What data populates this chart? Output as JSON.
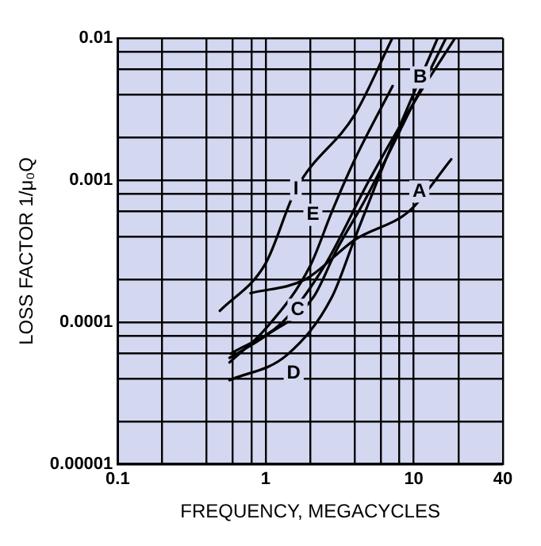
{
  "chart_data": {
    "type": "line",
    "xlabel": "FREQUENCY, MEGACYCLES",
    "ylabel": "LOSS FACTOR 1/μ₀Q",
    "log": "xy",
    "grid": true,
    "legend": false,
    "marker": "none",
    "line_style": "solid",
    "xlim": [
      0.1,
      40
    ],
    "xticks": [
      0.1,
      {
        "value": 0.2,
        "label": null
      },
      {
        "value": 0.4,
        "label": null
      },
      {
        "value": 0.6,
        "label": null
      },
      {
        "value": 0.8,
        "label": null
      },
      1,
      {
        "value": 2,
        "label": null
      },
      {
        "value": 4,
        "label": null
      },
      {
        "value": 6,
        "label": null
      },
      {
        "value": 8,
        "label": null
      },
      10,
      {
        "value": 20,
        "label": null
      },
      40
    ],
    "ylim": [
      1e-05,
      0.01
    ],
    "yticks": [
      {
        "value": 1e-05,
        "label": "0.00001"
      },
      {
        "value": 2e-05,
        "label": null
      },
      {
        "value": 4e-05,
        "label": null
      },
      {
        "value": 6e-05,
        "label": null
      },
      {
        "value": 8e-05,
        "label": null
      },
      0.0001,
      {
        "value": 0.0002,
        "label": null
      },
      {
        "value": 0.0004,
        "label": null
      },
      {
        "value": 0.0006,
        "label": null
      },
      {
        "value": 0.0008,
        "label": null
      },
      0.001,
      {
        "value": 0.002,
        "label": null
      },
      {
        "value": 0.004,
        "label": null
      },
      {
        "value": 0.006,
        "label": null
      },
      {
        "value": 0.008,
        "label": null
      },
      0.01
    ],
    "series": [
      {
        "name": "I",
        "color": "#000000",
        "x": [
          0.49,
          1,
          1.6,
          4,
          7.1
        ],
        "values": [
          0.00012,
          0.00026,
          0.00086,
          0.0029,
          0.0098
        ]
      },
      {
        "name": "E",
        "color": "#000000",
        "x": [
          0.57,
          1,
          2,
          2.8,
          4,
          7.2
        ],
        "values": [
          5.2e-05,
          9e-05,
          0.00025,
          0.0006,
          0.0014,
          0.0046
        ]
      },
      {
        "name": "C",
        "color": "#000000",
        "x": [
          0.57,
          1,
          2.1,
          3,
          4.7,
          10,
          16.5
        ],
        "values": [
          5.6e-05,
          8e-05,
          0.00015,
          0.00032,
          0.00073,
          0.0035,
          0.01
        ]
      },
      {
        "name": "D",
        "color": "#000000",
        "x": [
          0.57,
          1.4,
          2.8,
          4,
          7,
          14.5
        ],
        "values": [
          3.9e-05,
          5.9e-05,
          0.00015,
          0.00039,
          0.0017,
          0.01
        ]
      },
      {
        "name": "A",
        "color": "#000000",
        "x": [
          0.79,
          1.85,
          4,
          9.4,
          17.9
        ],
        "values": [
          0.00016,
          0.0002,
          0.00038,
          0.00061,
          0.0014
        ]
      },
      {
        "name": "B",
        "color": "#000000",
        "x": [
          0.58,
          1.3,
          2.5,
          5,
          10,
          19
        ],
        "values": [
          6e-05,
          0.0001,
          0.00025,
          0.001,
          0.0035,
          0.01
        ]
      }
    ]
  }
}
